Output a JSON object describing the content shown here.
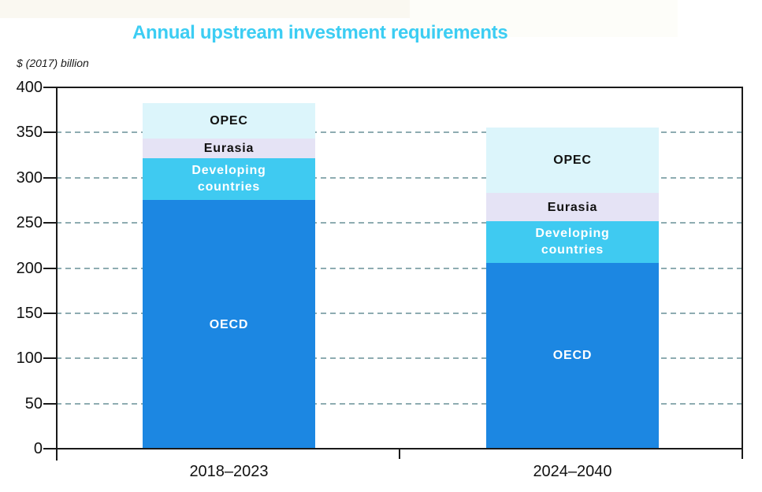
{
  "title": "Annual upstream investment requirements",
  "unit_label": "$ (2017) billion",
  "colors": {
    "title": "#3ccdf3",
    "axis": "#1a1a1a",
    "gridline": "#7a9da3",
    "oecd": "#1c87e2",
    "developing": "#3fcaf1",
    "eurasia": "#e5e3f5",
    "opec": "#dcf5fb"
  },
  "chart_data": {
    "type": "bar",
    "stacked": true,
    "title": "Annual upstream investment requirements",
    "ylabel": "$ (2017) billion",
    "ylim": [
      0,
      400
    ],
    "yticks": [
      0,
      50,
      100,
      150,
      200,
      250,
      300,
      350,
      400
    ],
    "grid": "dashed-horizontal",
    "legend": "labels-inside-segments",
    "categories": [
      "2018–2023",
      "2024–2040"
    ],
    "series": [
      {
        "name": "OECD",
        "label_lines": [
          "OECD"
        ],
        "values": [
          275,
          206
        ],
        "color_key": "oecd",
        "label_color": "#ffffff"
      },
      {
        "name": "Developing countries",
        "label_lines": [
          "Developing",
          "countries"
        ],
        "values": [
          47,
          46
        ],
        "color_key": "developing",
        "label_color": "#ffffff"
      },
      {
        "name": "Eurasia",
        "label_lines": [
          "Eurasia"
        ],
        "values": [
          21,
          31
        ],
        "color_key": "eurasia",
        "label_color": "#111111"
      },
      {
        "name": "OPEC",
        "label_lines": [
          "OPEC"
        ],
        "values": [
          40,
          73
        ],
        "color_key": "opec",
        "label_color": "#111111"
      }
    ],
    "totals": [
      383,
      356
    ]
  }
}
